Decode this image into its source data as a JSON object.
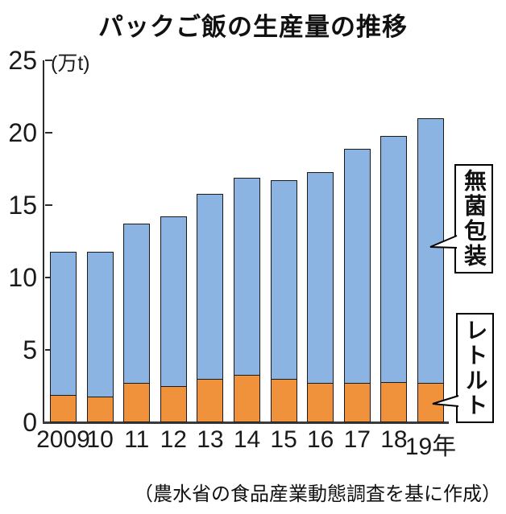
{
  "title": "パックご飯の生産量の推移",
  "y_axis": {
    "unit": "(万t)",
    "ticks": [
      25,
      20,
      15,
      10,
      5,
      0
    ]
  },
  "legend": {
    "aseptic_label": "無菌包装",
    "retort_label": "レトルト"
  },
  "source_note": "（農水省の食品産業動態調査を基に作成）",
  "colors": {
    "aseptic_blue": "#8CB4E2",
    "retort_orange": "#F0913C",
    "bar_border": "#1a1a1a",
    "axis": "#2b2b2b"
  },
  "chart_data": {
    "type": "bar",
    "stacked": true,
    "title": "パックご飯の生産量の推移",
    "xlabel": "",
    "ylabel": "(万t)",
    "ylim": [
      0,
      25
    ],
    "grid": false,
    "legend_position": "right",
    "categories": [
      "2009",
      "10",
      "11",
      "12",
      "13",
      "14",
      "15",
      "16",
      "17",
      "18",
      "19年"
    ],
    "series": [
      {
        "name": "レトルト",
        "color": "#F0913C",
        "values": [
          1.9,
          1.8,
          2.7,
          2.5,
          3.0,
          3.3,
          3.0,
          2.7,
          2.7,
          2.8,
          2.7
        ]
      },
      {
        "name": "無菌包装",
        "color": "#8CB4E2",
        "values": [
          9.9,
          10.0,
          11.0,
          11.7,
          12.8,
          13.6,
          13.7,
          14.6,
          16.2,
          17.0,
          18.3
        ]
      }
    ],
    "totals": [
      11.8,
      11.8,
      13.7,
      14.2,
      15.8,
      16.9,
      16.7,
      17.3,
      18.9,
      19.8,
      21.0
    ]
  }
}
